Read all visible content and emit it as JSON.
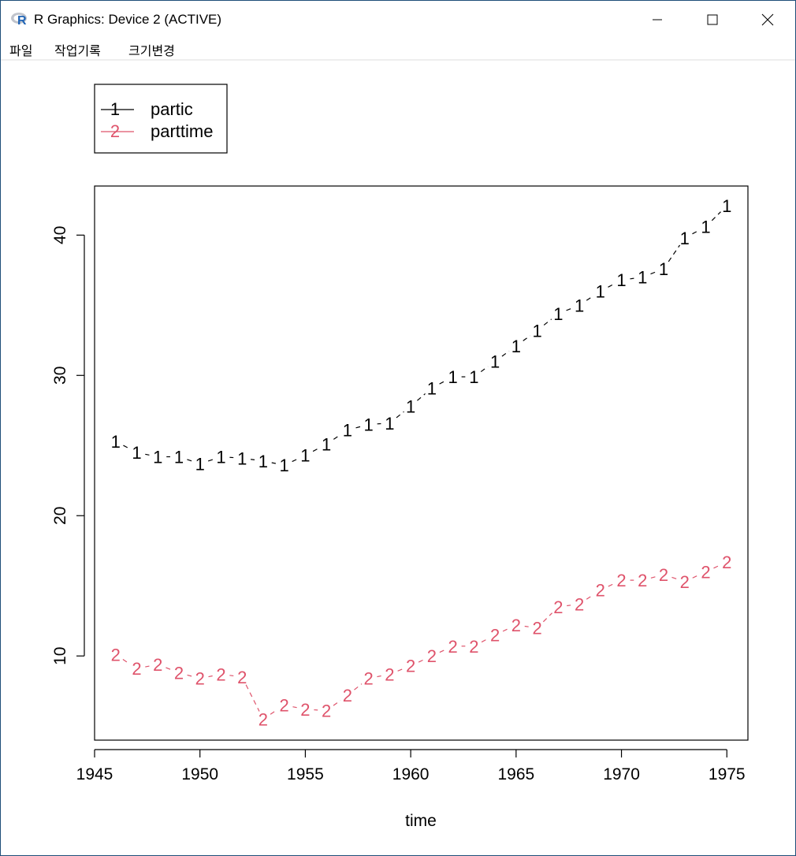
{
  "window": {
    "title": "R Graphics: Device 2 (ACTIVE)",
    "icon": "r-logo-icon",
    "controls": [
      "minimize-icon",
      "maximize-icon",
      "close-icon"
    ]
  },
  "menu": {
    "items": [
      {
        "label": "파일"
      },
      {
        "label": "작업기록"
      },
      {
        "label": "크기변경"
      }
    ]
  },
  "chart_data": {
    "type": "line",
    "x": [
      1946,
      1947,
      1948,
      1949,
      1950,
      1951,
      1952,
      1953,
      1954,
      1955,
      1956,
      1957,
      1958,
      1959,
      1960,
      1961,
      1962,
      1963,
      1964,
      1965,
      1966,
      1967,
      1968,
      1969,
      1970,
      1971,
      1972,
      1973,
      1974,
      1975
    ],
    "series": [
      {
        "name": "partic",
        "symbol": "1",
        "color": "#000000",
        "values": [
          25.3,
          24.5,
          24.2,
          24.2,
          23.7,
          24.2,
          24.1,
          23.9,
          23.6,
          24.3,
          25.1,
          26.1,
          26.5,
          26.6,
          27.8,
          29.1,
          29.9,
          29.9,
          31.0,
          32.1,
          33.2,
          34.4,
          35.0,
          36.0,
          36.8,
          37.0,
          37.6,
          39.8,
          40.6,
          42.1
        ]
      },
      {
        "name": "parttime",
        "symbol": "2",
        "color": "#df536b",
        "values": [
          10.1,
          9.1,
          9.4,
          8.8,
          8.4,
          8.7,
          8.5,
          5.5,
          6.5,
          6.2,
          6.1,
          7.2,
          8.4,
          8.7,
          9.3,
          10.0,
          10.7,
          10.7,
          11.5,
          12.2,
          12.0,
          13.5,
          13.7,
          14.7,
          15.4,
          15.4,
          15.8,
          15.3,
          16.0,
          16.7
        ]
      }
    ],
    "xlabel": "time",
    "ylabel": "",
    "x_ticks": [
      "1945",
      "1950",
      "1955",
      "1960",
      "1965",
      "1970",
      "1975"
    ],
    "y_ticks": [
      "10",
      "20",
      "30",
      "40"
    ],
    "xlim": [
      1945,
      1976
    ],
    "ylim": [
      4,
      43.5
    ],
    "legend_position": "top-left, outside plot box",
    "line_style": "dashed, plotted with number symbols",
    "grid": false
  }
}
